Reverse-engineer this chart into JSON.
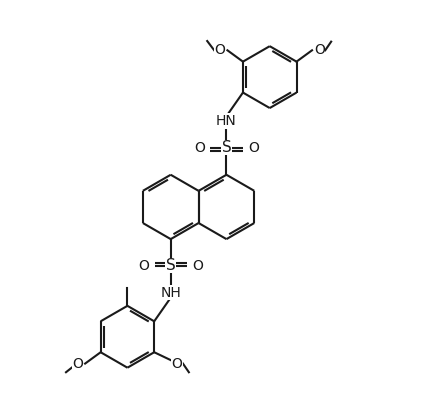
{
  "bg_color": "#ffffff",
  "line_color": "#1a1a1a",
  "line_width": 1.5,
  "font_size": 9.0,
  "figsize": [
    4.24,
    4.18
  ],
  "dpi": 100,
  "xlim": [
    0,
    10
  ],
  "ylim": [
    0,
    10
  ]
}
